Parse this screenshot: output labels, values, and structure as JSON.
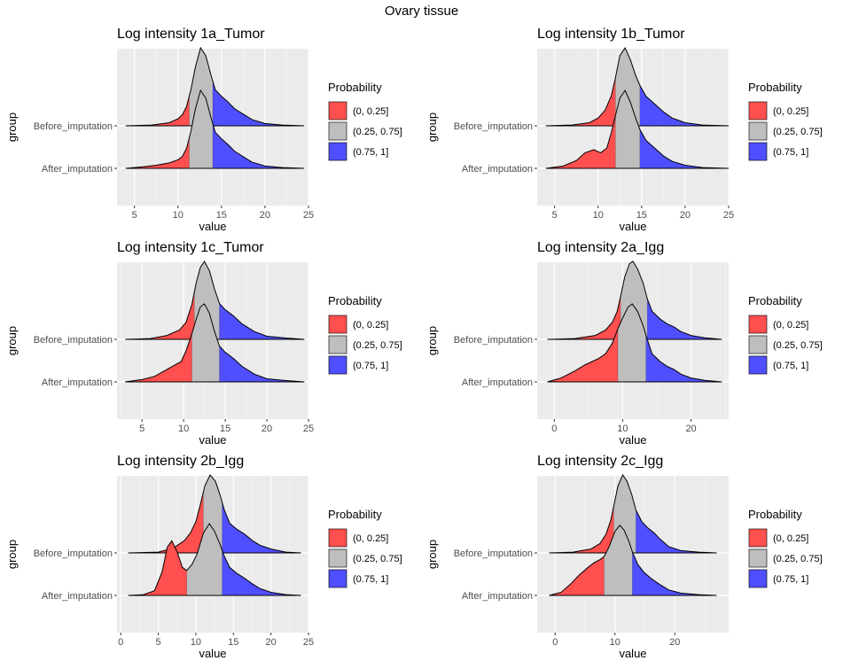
{
  "figure": {
    "title": "Ovary tissue"
  },
  "legend": {
    "title": "Probability",
    "entries": [
      {
        "label": "(0, 0.25]",
        "color": "#FF4F4F"
      },
      {
        "label": "(0.25, 0.75]",
        "color": "#BEBEBE"
      },
      {
        "label": "(0.75, 1]",
        "color": "#4F4FFF"
      }
    ]
  },
  "chart_data": [
    {
      "type": "area",
      "title": "Log intensity 1a_Tumor",
      "xlabel": "value",
      "ylabel": "group",
      "xlim": [
        3,
        25
      ],
      "xticks": [
        5,
        10,
        15,
        20,
        25
      ],
      "categories": [
        "Before_imputation",
        "After_imputation"
      ],
      "series": [
        {
          "name": "Before_imputation",
          "quartiles": [
            11.3,
            12.6,
            14.0
          ],
          "x": [
            4.0,
            7.0,
            9.0,
            10.0,
            10.5,
            11.0,
            11.5,
            12.0,
            12.6,
            13.2,
            13.8,
            14.3,
            15.0,
            15.8,
            16.5,
            17.5,
            18.5,
            20.0,
            22.0,
            24.5
          ],
          "density": [
            0.0,
            0.01,
            0.04,
            0.09,
            0.14,
            0.25,
            0.47,
            0.75,
            1.0,
            0.9,
            0.65,
            0.46,
            0.38,
            0.3,
            0.22,
            0.15,
            0.08,
            0.03,
            0.01,
            0.0
          ]
        },
        {
          "name": "After_imputation",
          "quartiles": [
            11.3,
            12.6,
            14.0
          ],
          "x": [
            4.0,
            6.0,
            7.5,
            9.0,
            10.0,
            10.5,
            11.0,
            11.5,
            12.0,
            12.6,
            13.2,
            13.8,
            14.3,
            15.0,
            15.8,
            16.5,
            17.5,
            18.5,
            20.0,
            22.0,
            24.5
          ],
          "density": [
            0.0,
            0.02,
            0.04,
            0.07,
            0.11,
            0.15,
            0.26,
            0.48,
            0.76,
            1.0,
            0.9,
            0.65,
            0.46,
            0.38,
            0.3,
            0.22,
            0.15,
            0.08,
            0.03,
            0.01,
            0.0
          ]
        }
      ]
    },
    {
      "type": "area",
      "title": "Log intensity 1b_Tumor",
      "xlabel": "value",
      "ylabel": "group",
      "xlim": [
        3,
        25
      ],
      "xticks": [
        5,
        10,
        15,
        20,
        25
      ],
      "categories": [
        "Before_imputation",
        "After_imputation"
      ],
      "series": [
        {
          "name": "Before_imputation",
          "quartiles": [
            12.0,
            13.1,
            14.8
          ],
          "x": [
            4.0,
            7.0,
            9.0,
            10.0,
            10.8,
            11.5,
            12.0,
            12.5,
            13.1,
            13.7,
            14.3,
            14.8,
            15.5,
            16.5,
            17.5,
            18.5,
            20.0,
            22.0,
            25.0
          ],
          "density": [
            0.0,
            0.01,
            0.04,
            0.1,
            0.2,
            0.38,
            0.62,
            0.9,
            1.0,
            0.85,
            0.65,
            0.52,
            0.38,
            0.28,
            0.18,
            0.1,
            0.04,
            0.01,
            0.0
          ]
        },
        {
          "name": "After_imputation",
          "quartiles": [
            12.0,
            13.1,
            14.8
          ],
          "x": [
            4.0,
            6.0,
            7.5,
            8.5,
            9.5,
            10.3,
            11.0,
            11.5,
            12.0,
            12.5,
            13.1,
            13.7,
            14.3,
            14.8,
            15.5,
            16.5,
            17.5,
            18.5,
            20.0,
            22.0,
            25.0
          ],
          "density": [
            0.0,
            0.03,
            0.1,
            0.2,
            0.24,
            0.2,
            0.26,
            0.45,
            0.68,
            0.9,
            1.0,
            0.85,
            0.65,
            0.5,
            0.36,
            0.26,
            0.16,
            0.09,
            0.04,
            0.01,
            0.0
          ]
        }
      ]
    },
    {
      "type": "area",
      "title": "Log intensity 1c_Tumor",
      "xlabel": "value",
      "ylabel": "group",
      "xlim": [
        2,
        25
      ],
      "xticks": [
        5,
        10,
        15,
        20,
        25
      ],
      "categories": [
        "Before_imputation",
        "After_imputation"
      ],
      "series": [
        {
          "name": "Before_imputation",
          "quartiles": [
            11.3,
            12.5,
            14.3
          ],
          "x": [
            3.0,
            6.0,
            8.0,
            9.5,
            10.3,
            11.0,
            11.5,
            12.0,
            12.5,
            13.1,
            13.7,
            14.3,
            15.0,
            16.0,
            17.0,
            18.5,
            20.0,
            22.0,
            24.5
          ],
          "density": [
            0.0,
            0.01,
            0.05,
            0.12,
            0.22,
            0.45,
            0.72,
            0.92,
            1.0,
            0.88,
            0.65,
            0.46,
            0.38,
            0.3,
            0.2,
            0.1,
            0.04,
            0.02,
            0.0
          ]
        },
        {
          "name": "After_imputation",
          "quartiles": [
            11.0,
            12.3,
            14.3
          ],
          "x": [
            3.0,
            5.0,
            6.5,
            8.0,
            9.0,
            9.7,
            10.3,
            11.0,
            11.5,
            12.0,
            12.5,
            13.1,
            13.7,
            14.3,
            15.0,
            16.0,
            17.0,
            18.5,
            20.0,
            22.0,
            24.5
          ],
          "density": [
            0.0,
            0.03,
            0.07,
            0.16,
            0.22,
            0.26,
            0.4,
            0.62,
            0.8,
            0.96,
            1.0,
            0.88,
            0.65,
            0.46,
            0.38,
            0.3,
            0.2,
            0.1,
            0.04,
            0.02,
            0.0
          ]
        }
      ]
    },
    {
      "type": "area",
      "title": "Log intensity 2a_Igg",
      "xlabel": "value",
      "ylabel": "group",
      "xlim": [
        -2.5,
        25.5
      ],
      "xticks": [
        0,
        10,
        20
      ],
      "categories": [
        "Before_imputation",
        "After_imputation"
      ],
      "series": [
        {
          "name": "Before_imputation",
          "quartiles": [
            9.7,
            11.5,
            13.6
          ],
          "x": [
            -1.0,
            3.0,
            6.0,
            7.5,
            8.5,
            9.2,
            9.7,
            10.3,
            11.0,
            11.5,
            12.2,
            13.0,
            13.6,
            14.3,
            15.5,
            16.5,
            17.5,
            18.5,
            20.0,
            22.0,
            24.5
          ],
          "density": [
            0.0,
            0.01,
            0.05,
            0.12,
            0.22,
            0.36,
            0.55,
            0.8,
            0.97,
            1.0,
            0.9,
            0.72,
            0.52,
            0.36,
            0.26,
            0.2,
            0.16,
            0.1,
            0.05,
            0.02,
            0.0
          ]
        },
        {
          "name": "After_imputation",
          "quartiles": [
            9.3,
            11.4,
            13.4
          ],
          "x": [
            -1.0,
            1.0,
            3.0,
            4.5,
            5.5,
            6.5,
            7.5,
            8.5,
            9.3,
            10.0,
            10.8,
            11.4,
            12.2,
            13.0,
            13.4,
            14.3,
            15.5,
            16.5,
            17.5,
            18.5,
            20.0,
            22.0,
            24.5
          ],
          "density": [
            0.0,
            0.05,
            0.14,
            0.22,
            0.26,
            0.3,
            0.36,
            0.5,
            0.68,
            0.82,
            0.96,
            1.0,
            0.9,
            0.72,
            0.6,
            0.36,
            0.26,
            0.2,
            0.16,
            0.1,
            0.05,
            0.02,
            0.0
          ]
        }
      ]
    },
    {
      "type": "area",
      "title": "Log intensity 2b_Igg",
      "xlabel": "value",
      "ylabel": "group",
      "xlim": [
        -0.5,
        25
      ],
      "xticks": [
        0,
        5,
        10,
        15,
        20,
        25
      ],
      "categories": [
        "Before_imputation",
        "After_imputation"
      ],
      "series": [
        {
          "name": "Before_imputation",
          "quartiles": [
            11.0,
            11.9,
            13.5
          ],
          "x": [
            1.0,
            5.0,
            7.0,
            8.5,
            9.3,
            10.0,
            10.6,
            11.2,
            11.9,
            12.6,
            13.2,
            13.8,
            14.5,
            15.5,
            16.5,
            17.5,
            18.5,
            20.0,
            22.0,
            24.0
          ],
          "density": [
            0.0,
            0.01,
            0.06,
            0.16,
            0.26,
            0.4,
            0.62,
            0.86,
            1.0,
            0.92,
            0.75,
            0.55,
            0.38,
            0.3,
            0.24,
            0.16,
            0.1,
            0.05,
            0.01,
            0.0
          ]
        },
        {
          "name": "After_imputation",
          "quartiles": [
            8.8,
            11.8,
            13.5
          ],
          "x": [
            1.0,
            3.0,
            4.5,
            5.5,
            6.2,
            6.8,
            7.5,
            8.2,
            8.8,
            9.5,
            10.2,
            11.0,
            11.8,
            12.5,
            13.2,
            13.8,
            14.5,
            15.5,
            16.5,
            17.5,
            18.5,
            20.0,
            22.0,
            24.0
          ],
          "density": [
            0.0,
            0.01,
            0.06,
            0.3,
            0.62,
            0.7,
            0.56,
            0.36,
            0.32,
            0.4,
            0.54,
            0.8,
            0.92,
            0.82,
            0.66,
            0.5,
            0.36,
            0.28,
            0.22,
            0.15,
            0.09,
            0.04,
            0.01,
            0.0
          ]
        }
      ]
    },
    {
      "type": "area",
      "title": "Log intensity 2c_Igg",
      "xlabel": "value",
      "ylabel": "group",
      "xlim": [
        -3,
        29
      ],
      "xticks": [
        0,
        10,
        20
      ],
      "categories": [
        "Before_imputation",
        "After_imputation"
      ],
      "series": [
        {
          "name": "Before_imputation",
          "quartiles": [
            9.8,
            11.3,
            13.5
          ],
          "x": [
            -1.0,
            3.0,
            6.0,
            7.5,
            8.5,
            9.3,
            9.8,
            10.5,
            11.3,
            12.0,
            12.8,
            13.5,
            14.5,
            15.5,
            16.5,
            17.5,
            19.0,
            21.0,
            24.0,
            27.0
          ],
          "density": [
            0.0,
            0.01,
            0.05,
            0.12,
            0.24,
            0.42,
            0.6,
            0.86,
            1.0,
            0.92,
            0.75,
            0.55,
            0.4,
            0.32,
            0.26,
            0.18,
            0.08,
            0.03,
            0.01,
            0.0
          ]
        },
        {
          "name": "After_imputation",
          "quartiles": [
            8.2,
            10.8,
            12.9
          ],
          "x": [
            -1.0,
            1.0,
            2.5,
            4.0,
            5.5,
            6.5,
            7.5,
            8.2,
            9.0,
            10.0,
            10.8,
            11.5,
            12.3,
            12.9,
            13.8,
            14.8,
            16.0,
            17.5,
            19.0,
            21.0,
            24.0,
            27.0
          ],
          "density": [
            0.0,
            0.04,
            0.14,
            0.26,
            0.36,
            0.42,
            0.46,
            0.5,
            0.62,
            0.82,
            0.9,
            0.84,
            0.7,
            0.56,
            0.4,
            0.3,
            0.22,
            0.14,
            0.07,
            0.03,
            0.01,
            0.0
          ]
        }
      ]
    }
  ]
}
